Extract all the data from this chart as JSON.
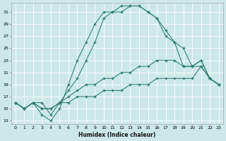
{
  "xlabel": "Humidex (Indice chaleur)",
  "bg_color": "#cce8e8",
  "grid_color": "#ffffff",
  "line_color": "#2e7d6e",
  "series": [
    {
      "x": [
        0,
        1,
        2,
        3,
        4,
        5,
        6,
        7,
        8,
        9,
        10,
        11,
        12,
        13,
        14,
        15,
        16,
        17,
        18,
        19,
        20,
        21,
        22,
        23
      ],
      "y": [
        16,
        15,
        16,
        16,
        14,
        16,
        18,
        20,
        23,
        26,
        30,
        31,
        31,
        32,
        32,
        31,
        30,
        27,
        26,
        25,
        22,
        23,
        20,
        19
      ]
    },
    {
      "x": [
        0,
        1,
        2,
        3,
        4,
        5,
        6,
        7,
        8,
        9,
        10,
        11,
        12,
        13,
        14,
        15,
        16,
        17,
        18,
        19,
        20,
        21,
        22,
        23
      ],
      "y": [
        16,
        15,
        16,
        14,
        13,
        15,
        19,
        23,
        26,
        29,
        31,
        31,
        32,
        32,
        32,
        31,
        30,
        28,
        26,
        22,
        22,
        23,
        20,
        19
      ]
    },
    {
      "x": [
        0,
        1,
        2,
        3,
        4,
        5,
        6,
        7,
        8,
        9,
        10,
        11,
        12,
        13,
        14,
        15,
        16,
        17,
        18,
        19,
        20,
        21,
        22,
        23
      ],
      "y": [
        16,
        15,
        16,
        15,
        15,
        16,
        17,
        18,
        19,
        19,
        20,
        20,
        21,
        21,
        22,
        22,
        23,
        23,
        23,
        22,
        22,
        22,
        20,
        19
      ]
    },
    {
      "x": [
        0,
        1,
        2,
        3,
        4,
        5,
        6,
        7,
        8,
        9,
        10,
        11,
        12,
        13,
        14,
        15,
        16,
        17,
        18,
        19,
        20,
        21,
        22,
        23
      ],
      "y": [
        16,
        15,
        16,
        15,
        15,
        16,
        16,
        17,
        17,
        17,
        18,
        18,
        18,
        19,
        19,
        19,
        20,
        20,
        20,
        20,
        20,
        22,
        20,
        19
      ]
    }
  ],
  "ylim": [
    12.5,
    32.5
  ],
  "xlim": [
    -0.5,
    23.5
  ],
  "yticks": [
    13,
    15,
    17,
    19,
    21,
    23,
    25,
    27,
    29,
    31
  ],
  "xticks": [
    0,
    1,
    2,
    3,
    4,
    5,
    6,
    7,
    8,
    9,
    10,
    11,
    12,
    13,
    14,
    15,
    16,
    17,
    18,
    19,
    20,
    21,
    22,
    23
  ]
}
